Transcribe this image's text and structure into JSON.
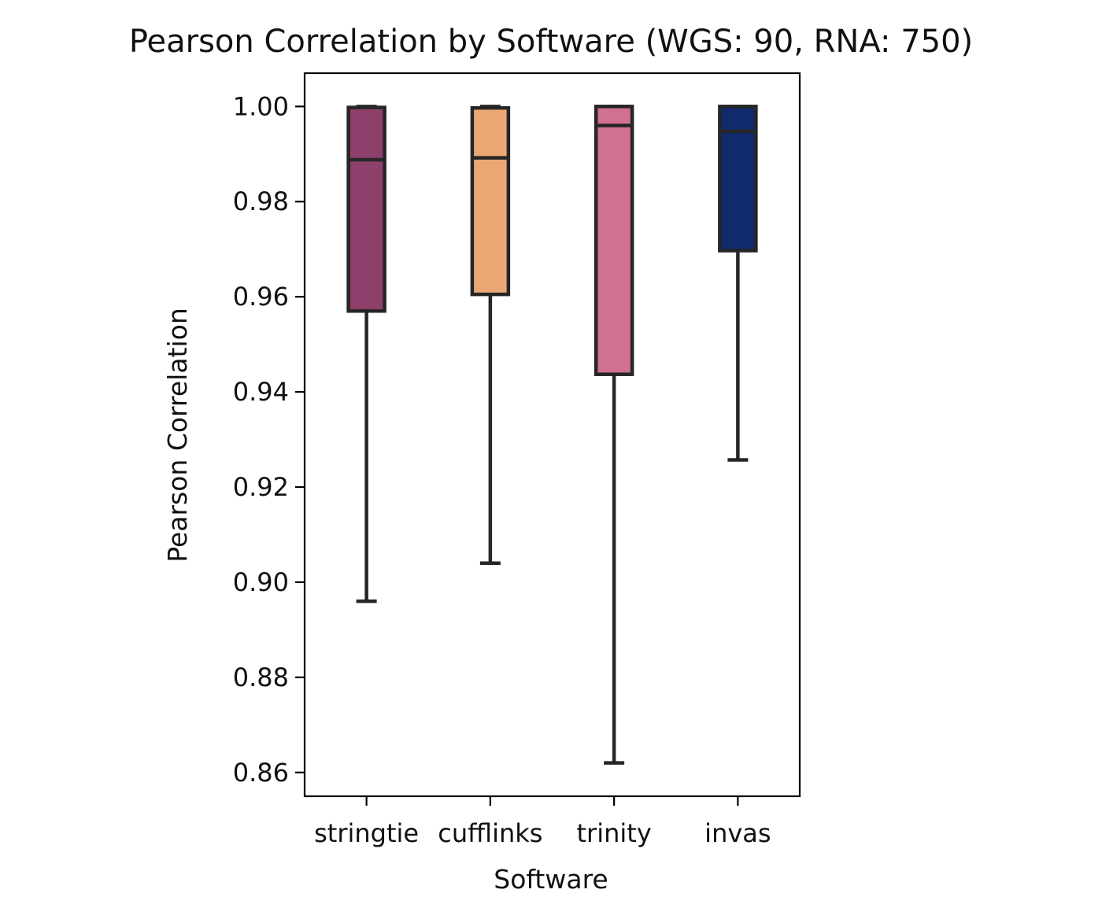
{
  "chart_data": {
    "type": "box",
    "title": "Pearson Correlation by Software (WGS: 90, RNA: 750)",
    "xlabel": "Software",
    "ylabel": "Pearson Correlation",
    "ylim": [
      0.855,
      1.007
    ],
    "yticks": [
      "0.86",
      "0.88",
      "0.90",
      "0.92",
      "0.94",
      "0.96",
      "0.98",
      "1.00"
    ],
    "grid": false,
    "categories": [
      "stringtie",
      "cufflinks",
      "trinity",
      "invas"
    ],
    "boxes": [
      {
        "category": "stringtie",
        "color": "#8f3f6b",
        "whisker_low": 0.896,
        "q1": 0.957,
        "median": 0.9888,
        "q3": 0.9998,
        "whisker_high": 1.0
      },
      {
        "category": "cufflinks",
        "color": "#eba874",
        "whisker_low": 0.904,
        "q1": 0.9605,
        "median": 0.9892,
        "q3": 0.9997,
        "whisker_high": 1.0
      },
      {
        "category": "trinity",
        "color": "#d1708f",
        "whisker_low": 0.862,
        "q1": 0.9437,
        "median": 0.996,
        "q3": 1.0,
        "whisker_high": 1.0
      },
      {
        "category": "invas",
        "color": "#102a6b",
        "whisker_low": 0.9257,
        "q1": 0.9697,
        "median": 0.9948,
        "q3": 1.0,
        "whisker_high": 1.0
      }
    ]
  }
}
